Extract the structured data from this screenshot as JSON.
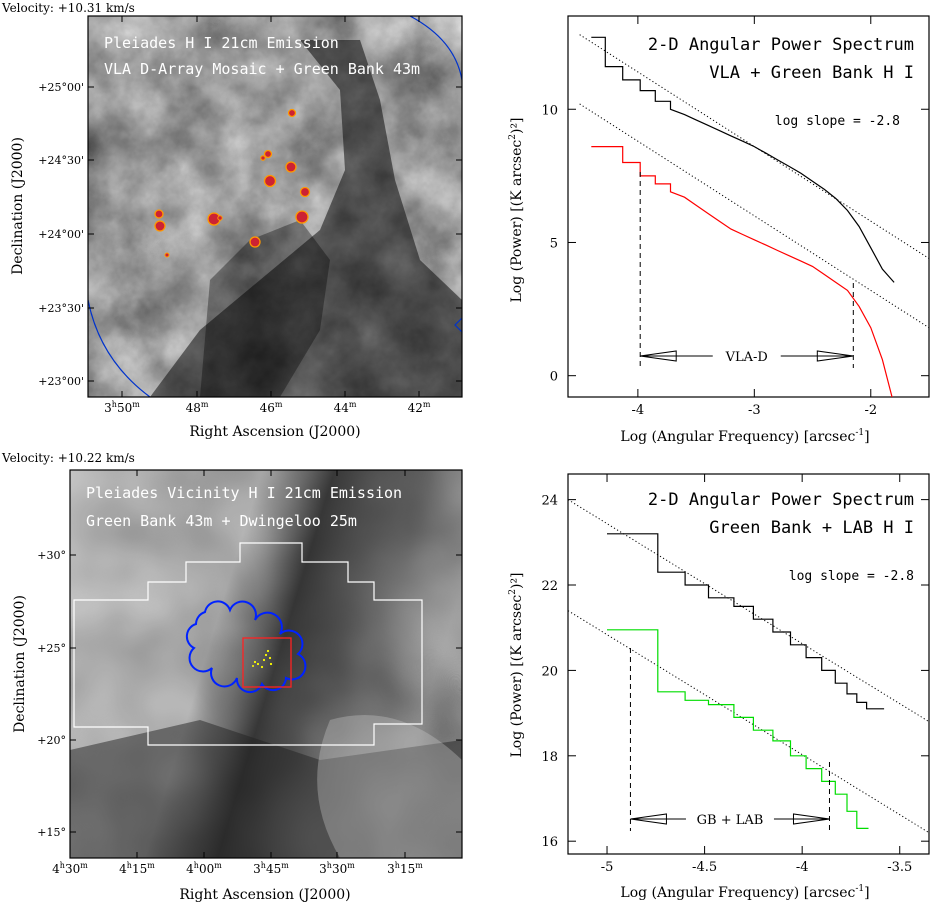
{
  "chart_data": [
    {
      "type": "image",
      "header": "Velocity: +10.31 km/s",
      "title_line1": "Pleiades H I 21cm Emission",
      "title_line2": "VLA D-Array Mosaic + Green Bank 43m",
      "xlabel": "Right Ascension (J2000)",
      "ylabel": "Declination (J2000)",
      "x_ticks": [
        {
          "h": "3",
          "m": "50"
        },
        {
          "h": "",
          "m": "48"
        },
        {
          "h": "",
          "m": "46"
        },
        {
          "h": "",
          "m": "44"
        },
        {
          "h": "",
          "m": "42"
        }
      ],
      "y_ticks": [
        "+25°00'",
        "+24°30'",
        "+24°00'",
        "+23°30'",
        "+23°00'"
      ],
      "colors": {
        "boundary": "#0033cc",
        "stars_outline": "#ff8c00",
        "stars_fill": "#cc2222"
      }
    },
    {
      "type": "line",
      "title_line1": "2-D Angular Power Spectrum",
      "title_line2": "VLA + Green Bank H I",
      "slope_label": "log slope = -2.8",
      "xlabel": "Log (Angular Frequency) [arcsec",
      "xlabel_sup": "-1",
      "xlabel_end": "]",
      "ylabel": "Log (Power) [(K arcsec",
      "ylabel_sup": "2",
      "ylabel_end": ")²]",
      "xlim": [
        -4.6,
        -1.5
      ],
      "ylim": [
        -0.8,
        13.5
      ],
      "x_ticks": [
        -4,
        -3,
        -2
      ],
      "y_ticks": [
        0,
        5,
        10
      ],
      "range_label": "VLA-D",
      "range": [
        -3.98,
        -2.15
      ],
      "series": [
        {
          "color": "#000000",
          "x": [
            -4.4,
            -4.28,
            -4.28,
            -4.13,
            -4.13,
            -3.98,
            -3.98,
            -3.85,
            -3.85,
            -3.72,
            -3.72,
            -3.6,
            -3.5,
            -3.4,
            -3.3,
            -3.2,
            -3.1,
            -3.0,
            -2.9,
            -2.8,
            -2.7,
            -2.6,
            -2.5,
            -2.4,
            -2.3,
            -2.2,
            -2.1,
            -2.0,
            -1.9,
            -1.8
          ],
          "y": [
            12.7,
            12.7,
            11.6,
            11.6,
            11.1,
            11.1,
            10.7,
            10.7,
            10.3,
            10.3,
            10.0,
            9.8,
            9.6,
            9.4,
            9.2,
            9.0,
            8.8,
            8.6,
            8.35,
            8.1,
            7.85,
            7.6,
            7.3,
            7.0,
            6.65,
            6.2,
            5.6,
            4.8,
            4.0,
            3.5
          ]
        },
        {
          "color": "#ff0000",
          "x": [
            -4.4,
            -4.13,
            -4.13,
            -3.98,
            -3.98,
            -3.85,
            -3.85,
            -3.72,
            -3.72,
            -3.6,
            -3.5,
            -3.4,
            -3.3,
            -3.2,
            -3.1,
            -3.0,
            -2.9,
            -2.8,
            -2.7,
            -2.6,
            -2.5,
            -2.4,
            -2.3,
            -2.2,
            -2.1,
            -2.0,
            -1.9,
            -1.8
          ],
          "y": [
            8.6,
            8.6,
            8.0,
            8.0,
            7.5,
            7.5,
            7.2,
            7.2,
            6.9,
            6.7,
            6.4,
            6.1,
            5.8,
            5.5,
            5.3,
            5.1,
            4.9,
            4.7,
            4.5,
            4.3,
            4.1,
            3.8,
            3.5,
            3.2,
            2.6,
            1.8,
            0.6,
            -1.1
          ]
        }
      ],
      "fit_lines": [
        {
          "x": [
            -4.5,
            -1.5
          ],
          "y": [
            12.8,
            4.4
          ]
        },
        {
          "x": [
            -4.5,
            -1.5
          ],
          "y": [
            10.2,
            1.8
          ]
        }
      ]
    },
    {
      "type": "image",
      "header": "Velocity: +10.22 km/s",
      "title_line1": "Pleiades Vicinity H I 21cm Emission",
      "title_line2": "Green Bank 43m + Dwingeloo 25m",
      "xlabel": "Right Ascension (J2000)",
      "ylabel": "Declination (J2000)",
      "x_ticks": [
        {
          "h": "4",
          "m": "30"
        },
        {
          "h": "4",
          "m": "15"
        },
        {
          "h": "4",
          "m": "00"
        },
        {
          "h": "3",
          "m": "45"
        },
        {
          "h": "3",
          "m": "30"
        },
        {
          "h": "3",
          "m": "15"
        }
      ],
      "y_ticks": [
        "+30°",
        "+25°",
        "+20°",
        "+15°"
      ],
      "colors": {
        "region": "#ffffff",
        "vla": "#0022ff",
        "box": "#ff2222",
        "stars": "#ffff00"
      }
    },
    {
      "type": "line",
      "title_line1": "2-D Angular Power Spectrum",
      "title_line2": "Green Bank + LAB H I",
      "slope_label": "log slope = -2.8",
      "xlabel": "Log (Angular Frequency) [arcsec",
      "xlabel_sup": "-1",
      "xlabel_end": "]",
      "ylabel": "Log (Power) [(K arcsec",
      "ylabel_sup": "2",
      "ylabel_end": ")²]",
      "xlim": [
        -5.2,
        -3.35
      ],
      "ylim": [
        15.7,
        24.6
      ],
      "x_ticks": [
        -5,
        -4.5,
        -4,
        -3.5
      ],
      "y_ticks": [
        16,
        18,
        20,
        22,
        24
      ],
      "range_label": "GB + LAB",
      "range": [
        -4.88,
        -3.86
      ],
      "series": [
        {
          "color": "#000000",
          "x": [
            -5.0,
            -4.74,
            -4.74,
            -4.6,
            -4.6,
            -4.48,
            -4.48,
            -4.35,
            -4.35,
            -4.25,
            -4.25,
            -4.15,
            -4.15,
            -4.06,
            -4.06,
            -3.98,
            -3.98,
            -3.9,
            -3.9,
            -3.83,
            -3.83,
            -3.77,
            -3.77,
            -3.72,
            -3.72,
            -3.67,
            -3.67,
            -3.63,
            -3.63,
            -3.58
          ],
          "y": [
            23.2,
            23.2,
            22.3,
            22.3,
            22.0,
            22.0,
            21.7,
            21.7,
            21.5,
            21.5,
            21.2,
            21.2,
            20.9,
            20.9,
            20.6,
            20.6,
            20.3,
            20.3,
            20.0,
            20.0,
            19.7,
            19.7,
            19.45,
            19.45,
            19.25,
            19.25,
            19.1,
            19.1,
            19.1,
            19.1
          ]
        },
        {
          "color": "#00dd00",
          "x": [
            -5.0,
            -4.74,
            -4.74,
            -4.6,
            -4.6,
            -4.48,
            -4.48,
            -4.35,
            -4.35,
            -4.25,
            -4.25,
            -4.15,
            -4.15,
            -4.06,
            -4.06,
            -3.98,
            -3.98,
            -3.9,
            -3.9,
            -3.83,
            -3.83,
            -3.77,
            -3.77,
            -3.72,
            -3.72,
            -3.66
          ],
          "y": [
            20.95,
            20.95,
            19.5,
            19.5,
            19.3,
            19.3,
            19.2,
            19.2,
            18.9,
            18.9,
            18.6,
            18.6,
            18.35,
            18.35,
            18.0,
            18.0,
            17.7,
            17.7,
            17.4,
            17.4,
            17.1,
            17.1,
            16.7,
            16.7,
            16.3,
            16.3
          ]
        }
      ],
      "fit_lines": [
        {
          "x": [
            -5.2,
            -3.35
          ],
          "y": [
            24.0,
            18.8
          ]
        },
        {
          "x": [
            -5.2,
            -3.35
          ],
          "y": [
            21.4,
            16.2
          ]
        }
      ]
    }
  ]
}
